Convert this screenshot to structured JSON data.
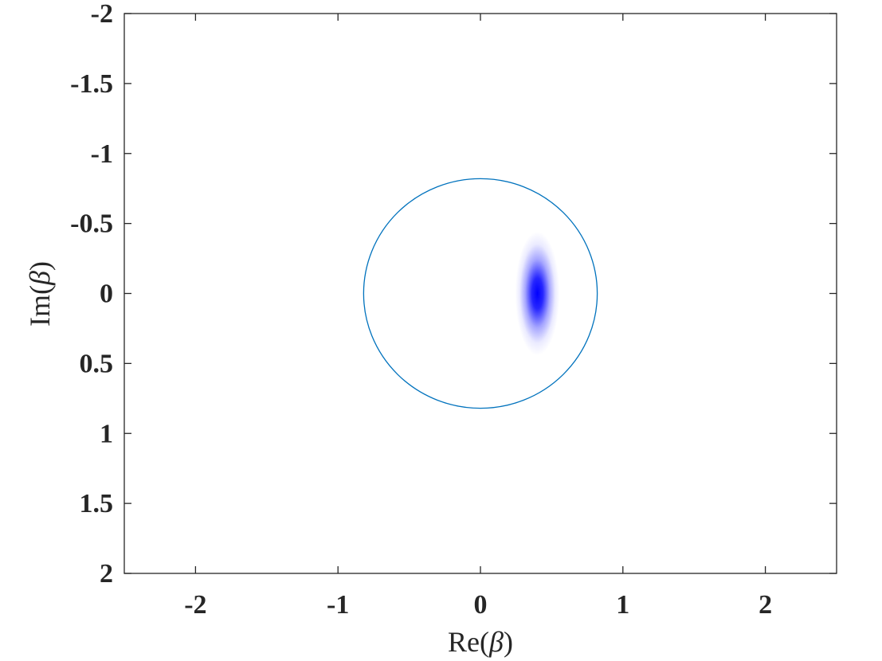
{
  "chart_data": {
    "type": "heatmap",
    "title": "",
    "xlabel": "Re(β)",
    "ylabel": "Im(β)",
    "xlabel_parts": [
      "Re(",
      "β",
      ")"
    ],
    "ylabel_parts": [
      "Im(",
      "β",
      ")"
    ],
    "xlim": [
      -2.5,
      2.5
    ],
    "ylim": [
      -2,
      2
    ],
    "y_reversed": true,
    "x_ticks": [
      -2,
      -1,
      0,
      1,
      2
    ],
    "x_tick_labels": [
      "-2",
      "-1",
      "0",
      "1",
      "2"
    ],
    "y_ticks": [
      -2,
      -1.5,
      -1,
      -0.5,
      0,
      0.5,
      1,
      1.5,
      2
    ],
    "y_tick_labels": [
      "-2",
      "-1.5",
      "-1",
      "-0.5",
      "0",
      "0.5",
      "1",
      "1.5",
      "2"
    ],
    "grid": false,
    "circle": {
      "center": [
        0,
        0
      ],
      "radius": 0.82,
      "color": "#0072BD"
    },
    "blob": {
      "center": [
        0.4,
        0
      ],
      "sigma_re": 0.06,
      "sigma_im": 0.17,
      "color": "#0000FF"
    }
  }
}
